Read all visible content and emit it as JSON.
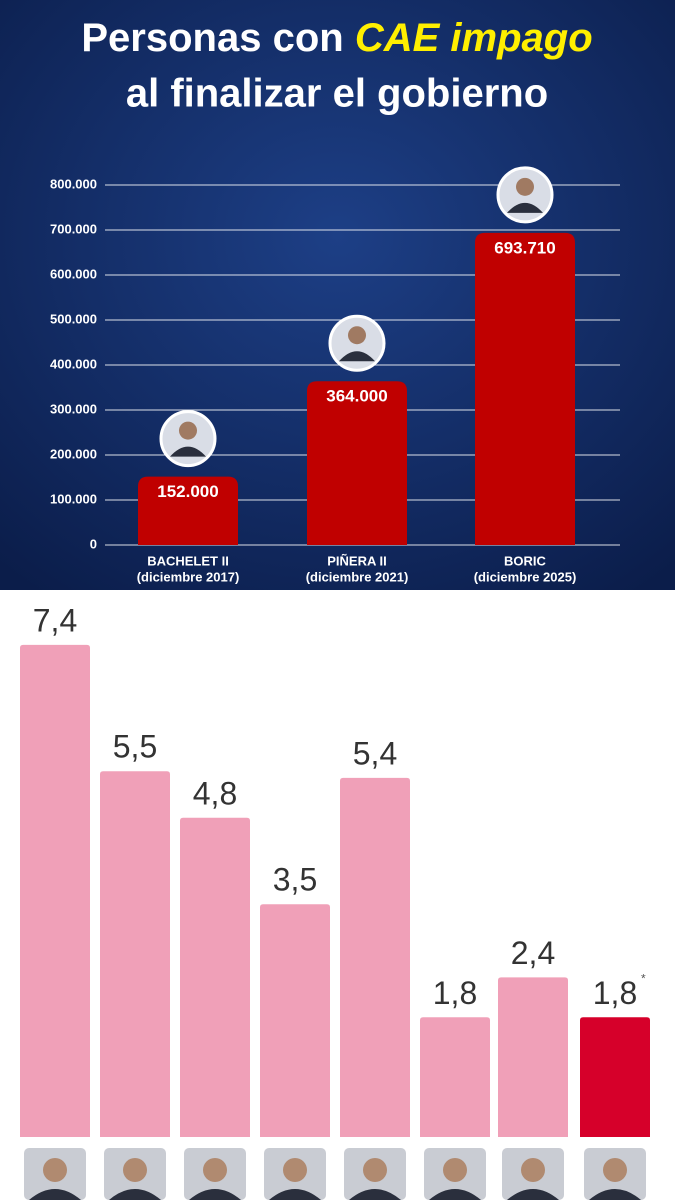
{
  "chart_data": [
    {
      "type": "bar",
      "title": [
        "Personas con",
        "CAE impago",
        "al finalizar el gobierno"
      ],
      "categories": [
        "BACHELET II",
        "PIÑERA II",
        "BORIC"
      ],
      "category_notes": [
        "(diciembre 2017)",
        "(diciembre 2021)",
        "(diciembre 2025)"
      ],
      "values": [
        152000,
        364000,
        693710
      ],
      "value_labels": [
        "152.000",
        "364.000",
        "693.710"
      ],
      "color": "#c00000",
      "ylim": [
        0,
        800000
      ],
      "yticks": [
        0,
        {
          "value": 100000,
          "label": "100.000"
        },
        {
          "value": 200000,
          "label": "200.000"
        },
        {
          "value": 300000,
          "label": "300.000"
        },
        {
          "value": 400000,
          "label": "400.000"
        },
        {
          "value": 500000,
          "label": "500.000"
        },
        {
          "value": 600000,
          "label": "600.000"
        },
        {
          "value": 700000,
          "label": "700.000"
        },
        {
          "value": 800000,
          "label": "800.000"
        }
      ],
      "grid": true
    },
    {
      "type": "bar",
      "categories": [
        null,
        null,
        null,
        null,
        null,
        null,
        null,
        null
      ],
      "values": [
        7.4,
        5.5,
        4.8,
        3.5,
        5.4,
        1.8,
        2.4,
        1.8
      ],
      "value_labels": [
        "7,4",
        "5,5",
        "4,8",
        "3,5",
        "5,4",
        "1,8",
        "2,4",
        "1,8"
      ],
      "colors": [
        "#f0a0b8",
        "#f0a0b8",
        "#f0a0b8",
        "#f0a0b8",
        "#f0a0b8",
        "#f0a0b8",
        "#f0a0b8",
        "#d6002a"
      ],
      "footnote_mark": "*",
      "ylim": [
        0,
        8
      ]
    }
  ]
}
